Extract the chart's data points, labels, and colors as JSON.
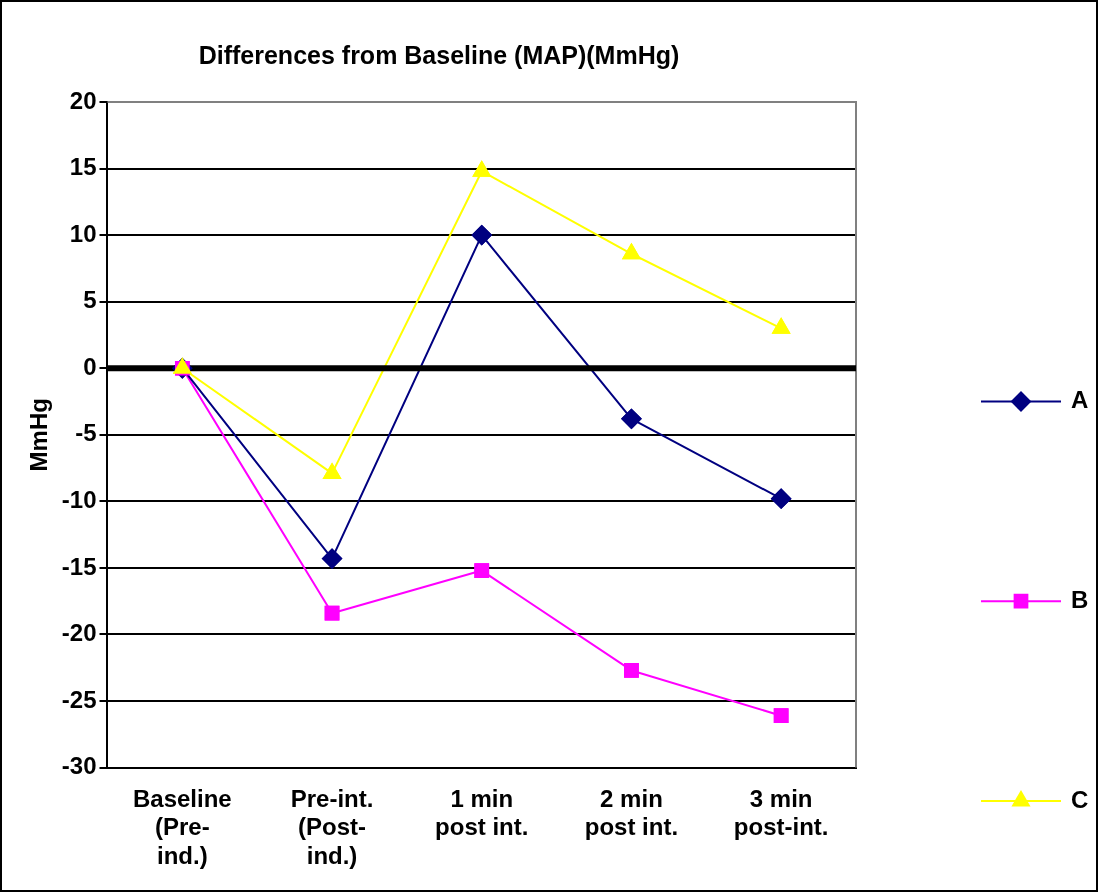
{
  "chart_data": {
    "type": "line",
    "title": "Differences from Baseline (MAP)(MmHg)",
    "ylabel": "MmHg",
    "categories": [
      "Baseline (Pre-ind.)",
      "Pre-int. (Post-ind.)",
      "1 min post int.",
      "2 min post int.",
      "3 min post-int."
    ],
    "series": [
      {
        "name": "A",
        "color": "#000080",
        "marker": "diamond",
        "values": [
          0,
          -14.3,
          10,
          -3.8,
          -9.8
        ]
      },
      {
        "name": "B",
        "color": "#ff00ff",
        "marker": "square",
        "values": [
          0,
          -18.4,
          -15.2,
          -22.7,
          -26.1
        ]
      },
      {
        "name": "C",
        "color": "#ffff00",
        "marker": "triangle",
        "values": [
          0,
          -7.9,
          14.8,
          8.6,
          3.0
        ]
      }
    ],
    "ylim": [
      -30,
      20
    ],
    "yticks": [
      -30,
      -25,
      -20,
      -15,
      -10,
      -5,
      0,
      5,
      10,
      15,
      20
    ],
    "grid": "y",
    "legend": "right",
    "ref_lines": [
      {
        "axis": "y",
        "value": 0,
        "color": "#000000"
      }
    ]
  }
}
